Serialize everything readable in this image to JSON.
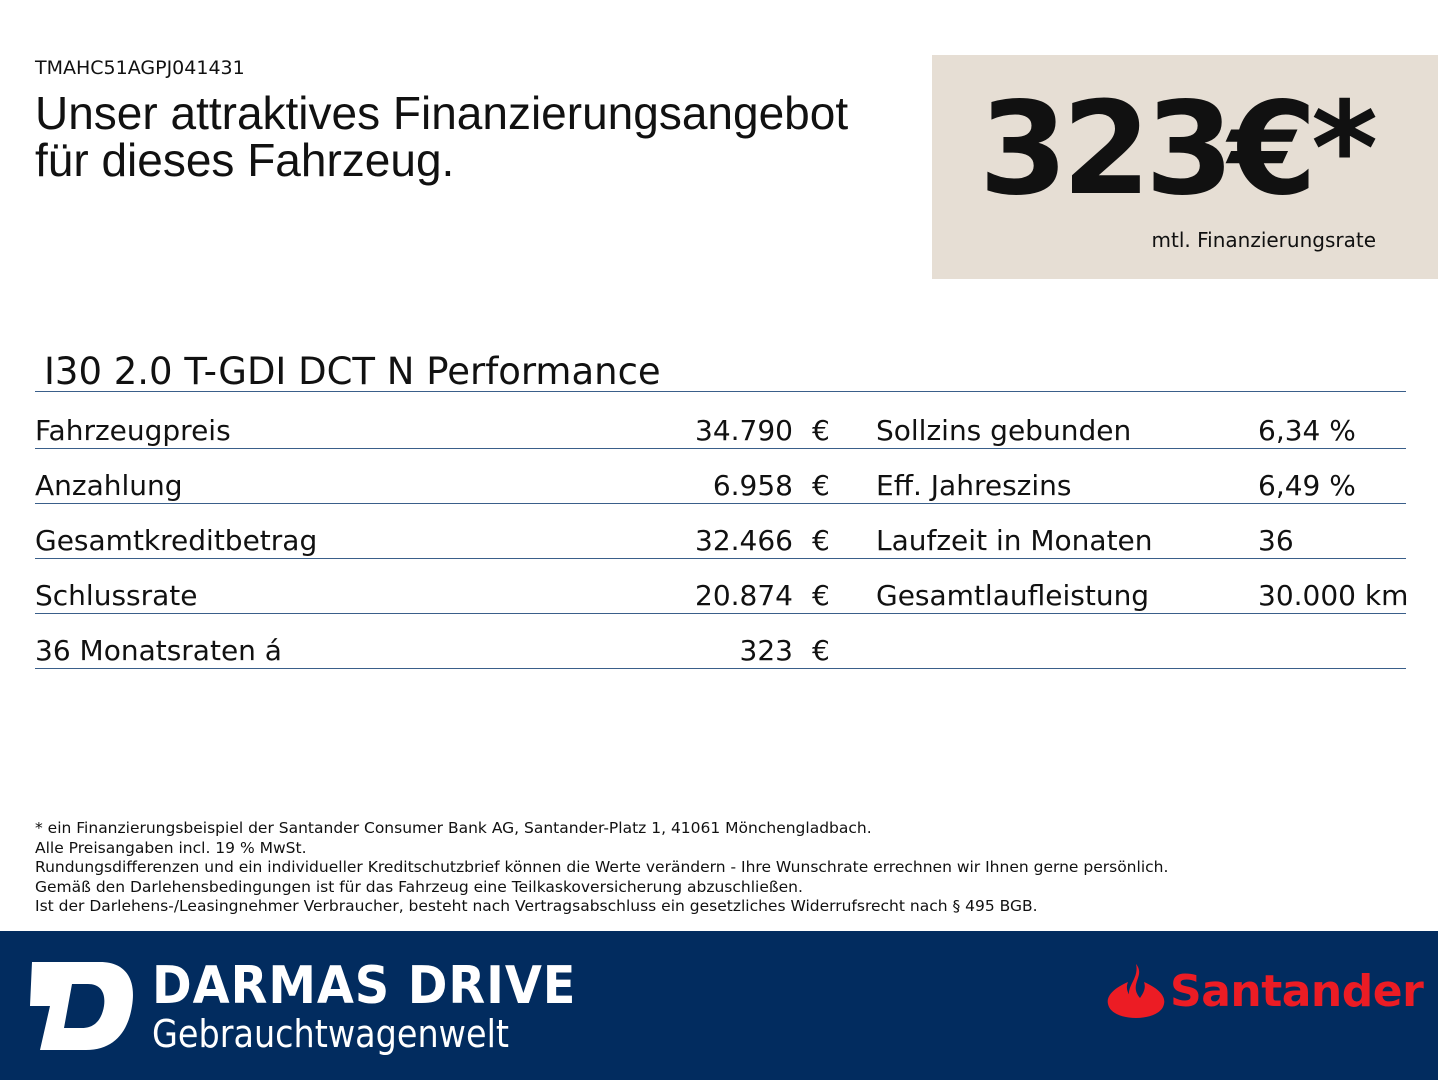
{
  "vin": "TMAHC51AGPJ041431",
  "title_line1": "Unser attraktives Finanzierungsangebot",
  "title_line2": "für dieses Fahrzeug.",
  "price": "323€*",
  "price_label": "mtl. Finanzierungsrate",
  "model": "I30 2.0 T-GDI DCT N Performance",
  "rows": [
    {
      "label": "Fahrzeugpreis",
      "value": "34.790",
      "unit": "€",
      "rlabel": "Sollzins gebunden",
      "rvalue": "6,34 %"
    },
    {
      "label": "Anzahlung",
      "value": "6.958",
      "unit": "€",
      "rlabel": "Eff. Jahreszins",
      "rvalue": "6,49 %"
    },
    {
      "label": "Gesamtkreditbetrag",
      "value": "32.466",
      "unit": "€",
      "rlabel": "Laufzeit in Monaten",
      "rvalue": "36"
    },
    {
      "label": "Schlussrate",
      "value": "20.874",
      "unit": "€",
      "rlabel": "Gesamtlaufleistung",
      "rvalue": "30.000 km"
    },
    {
      "label": "36 Monatsraten á",
      "value": "323",
      "unit": "€",
      "rlabel": "",
      "rvalue": ""
    }
  ],
  "notes": [
    "* ein Finanzierungsbeispiel der Santander Consumer Bank AG, Santander-Platz 1, 41061 Mönchengladbach.",
    "Alle Preisangaben incl. 19 % MwSt.",
    "Rundungsdifferenzen und ein individueller Kreditschutzbrief können die Werte verändern - Ihre Wunschrate errechnen wir Ihnen gerne persönlich.",
    "Gemäß den Darlehensbedingungen ist für das Fahrzeug eine Teilkaskoversicherung abzuschließen.",
    "Ist der Darlehens-/Leasingnehmer Verbraucher, besteht nach Vertragsabschluss ein gesetzliches Widerrufsrecht nach § 495 BGB."
  ],
  "footer": {
    "brand": "DARMAS DRIVE",
    "subtitle": "Gebrauchtwagenwelt",
    "partner": "Santander"
  },
  "colors": {
    "footer_bg": "#022c5f",
    "price_box": "#e6ded4",
    "santander_red": "#ec1c24"
  }
}
